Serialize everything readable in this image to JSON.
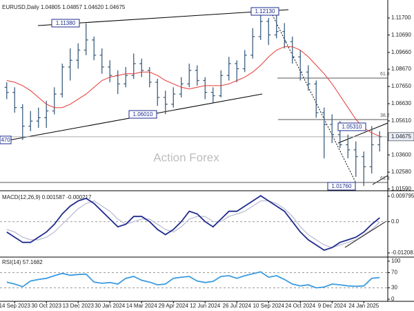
{
  "chart_data": [
    {
      "type": "ohlc",
      "title": "EURUSD,Daily 1.04805 1.04857 1.04620 1.04675",
      "watermark": "Action Forex",
      "color": "#3d5f7e",
      "ylim": [
        1.0148,
        1.126
      ],
      "yticks": [
        {
          "value": 1.117,
          "label": "1.11700"
        },
        {
          "value": 1.1069,
          "label": "1.10690"
        },
        {
          "value": 1.0966,
          "label": "1.09660"
        },
        {
          "value": 1.0867,
          "label": "1.08670"
        },
        {
          "value": 1.0765,
          "label": "1.07650"
        },
        {
          "value": 1.0663,
          "label": "1.06630"
        },
        {
          "value": 1.0561,
          "label": "1.05610"
        },
        {
          "value": 1.036,
          "label": "1.03600"
        },
        {
          "value": 1.0258,
          "label": "1.02580"
        },
        {
          "value": 1.0159,
          "label": "1.01590"
        }
      ],
      "grid": false,
      "last_price": {
        "value": 1.04675,
        "label": "1.04675"
      },
      "annotations": [
        "1.11380",
        "1.12130",
        "1.06010",
        "1.05310",
        "1.01760",
        "470",
        "61.8",
        "38.2",
        "61.8"
      ],
      "ohlc": {
        "open": [
          1.076,
          1.073,
          1.064,
          1.053,
          1.056,
          1.058,
          1.062,
          1.072,
          1.088,
          1.092,
          1.098,
          1.104,
          1.095,
          1.088,
          1.083,
          1.078,
          1.083,
          1.09,
          1.086,
          1.079,
          1.07,
          1.066,
          1.072,
          1.078,
          1.086,
          1.08,
          1.073,
          1.071,
          1.083,
          1.09,
          1.087,
          1.095,
          1.106,
          1.115,
          1.107,
          1.109,
          1.103,
          1.094,
          1.085,
          1.078,
          1.061,
          1.054,
          1.048,
          1.042,
          1.039,
          1.035,
          1.029,
          1.042
        ],
        "high": [
          1.079,
          1.076,
          1.066,
          1.062,
          1.064,
          1.068,
          1.076,
          1.09,
          1.099,
          1.102,
          1.1139,
          1.106,
          1.099,
          1.092,
          1.086,
          1.088,
          1.096,
          1.093,
          1.088,
          1.081,
          1.074,
          1.076,
          1.082,
          1.09,
          1.089,
          1.082,
          1.076,
          1.086,
          1.094,
          1.092,
          1.098,
          1.111,
          1.1214,
          1.117,
          1.119,
          1.114,
          1.106,
          1.098,
          1.089,
          1.08,
          1.064,
          1.06,
          1.056,
          1.048,
          1.044,
          1.038,
          1.053,
          1.05
        ],
        "low": [
          1.069,
          1.061,
          1.0448,
          1.05,
          1.052,
          1.052,
          1.06,
          1.07,
          1.08,
          1.087,
          1.095,
          1.092,
          1.084,
          1.079,
          1.072,
          1.076,
          1.081,
          1.082,
          1.076,
          1.065,
          1.0601,
          1.064,
          1.07,
          1.076,
          1.077,
          1.069,
          1.067,
          1.07,
          1.08,
          1.079,
          1.085,
          1.093,
          1.104,
          1.101,
          1.105,
          1.099,
          1.09,
          1.08,
          1.074,
          1.058,
          1.034,
          1.043,
          1.04,
          1.034,
          1.023,
          1.0176,
          1.025,
          1.038
        ],
        "close": [
          1.073,
          1.064,
          1.053,
          1.056,
          1.058,
          1.062,
          1.072,
          1.088,
          1.092,
          1.098,
          1.104,
          1.095,
          1.088,
          1.083,
          1.078,
          1.083,
          1.09,
          1.086,
          1.079,
          1.07,
          1.066,
          1.072,
          1.078,
          1.086,
          1.08,
          1.073,
          1.071,
          1.083,
          1.09,
          1.087,
          1.095,
          1.106,
          1.115,
          1.107,
          1.109,
          1.103,
          1.094,
          1.085,
          1.078,
          1.061,
          1.054,
          1.048,
          1.042,
          1.039,
          1.035,
          1.029,
          1.042,
          1.0468
        ]
      },
      "overlays": [
        {
          "color": "#e53935",
          "values": [
            1.08,
            1.079,
            1.077,
            1.074,
            1.07,
            1.066,
            1.064,
            1.064,
            1.066,
            1.069,
            1.072,
            1.076,
            1.08,
            1.082,
            1.083,
            1.084,
            1.084,
            1.085,
            1.085,
            1.083,
            1.08,
            1.078,
            1.076,
            1.075,
            1.076,
            1.077,
            1.077,
            1.077,
            1.078,
            1.08,
            1.082,
            1.085,
            1.089,
            1.094,
            1.098,
            1.1,
            1.1,
            1.098,
            1.094,
            1.089,
            1.084,
            1.078,
            1.071,
            1.064,
            1.057,
            1.052,
            1.049,
            1.047
          ]
        }
      ]
    },
    {
      "type": "line",
      "title": "MACD(12,26,9) 0.001587 -0.000217",
      "ylim": [
        -0.01368,
        0.01113
      ],
      "yticks": [
        0.009795,
        {
          "value": 0,
          "label": "0.0"
        },
        -0.012081
      ],
      "grid": true,
      "series": [
        {
          "color": "#1f2a8c",
          "values": [
            -0.004,
            -0.006,
            -0.008,
            -0.008,
            -0.006,
            -0.004,
            -0.001,
            0.003,
            0.006,
            0.008,
            0.009,
            0.007,
            0.004,
            0.001,
            -0.002,
            -0.001,
            0.002,
            0.002,
            0,
            -0.003,
            -0.005,
            -0.003,
            0,
            0.004,
            0.003,
            0,
            -0.002,
            0.001,
            0.004,
            0.004,
            0.006,
            0.008,
            0.01,
            0.008,
            0.006,
            0.004,
            0,
            -0.004,
            -0.007,
            -0.009,
            -0.011,
            -0.01,
            -0.008,
            -0.007,
            -0.006,
            -0.004,
            -0.001,
            0.0015
          ]
        },
        {
          "color": "#b7b9cf",
          "values": [
            -0.003,
            -0.004,
            -0.006,
            -0.007,
            -0.007,
            -0.006,
            -0.004,
            -0.001,
            0.002,
            0.005,
            0.007,
            0.008,
            0.006,
            0.004,
            0.001,
            -0.001,
            0,
            0.001,
            0.001,
            -0.001,
            -0.003,
            -0.004,
            -0.002,
            0.001,
            0.002,
            0.002,
            0,
            0,
            0.002,
            0.003,
            0.004,
            0.006,
            0.008,
            0.008,
            0.007,
            0.005,
            0.002,
            -0.002,
            -0.005,
            -0.007,
            -0.009,
            -0.01,
            -0.009,
            -0.008,
            -0.007,
            -0.005,
            -0.003,
            -0.0002
          ]
        }
      ]
    },
    {
      "type": "line",
      "title": "RSI(14) 57.1682",
      "ylim": [
        -5.5,
        109
      ],
      "yticks": [
        100,
        70,
        30,
        0
      ],
      "grid": true,
      "categories": [
        null,
        "14 Sep 2023",
        null,
        null,
        null,
        "30 Oct 2023",
        null,
        null,
        null,
        "13 Dec 2023",
        null,
        null,
        null,
        "30 Jan 2024",
        null,
        null,
        null,
        "14 Mar 2024",
        null,
        null,
        null,
        "29 Apr 2024",
        null,
        null,
        null,
        "12 Jun 2024",
        null,
        null,
        null,
        "26 Jul 2024",
        null,
        null,
        null,
        "10 Sep 2024",
        null,
        null,
        null,
        "24 Oct 2024",
        null,
        null,
        null,
        "9 Dec 2024",
        null,
        null,
        null,
        "24 Jan 2025",
        null,
        null
      ],
      "series": [
        {
          "color": "#3a9be0",
          "values": [
            45,
            40,
            33,
            48,
            52,
            55,
            62,
            68,
            63,
            65,
            66,
            45,
            42,
            44,
            40,
            55,
            60,
            50,
            45,
            38,
            40,
            55,
            58,
            60,
            48,
            44,
            47,
            60,
            62,
            55,
            62,
            67,
            72,
            58,
            62,
            52,
            40,
            35,
            38,
            30,
            32,
            40,
            38,
            35,
            34,
            35,
            55,
            57.1682
          ]
        }
      ]
    }
  ]
}
